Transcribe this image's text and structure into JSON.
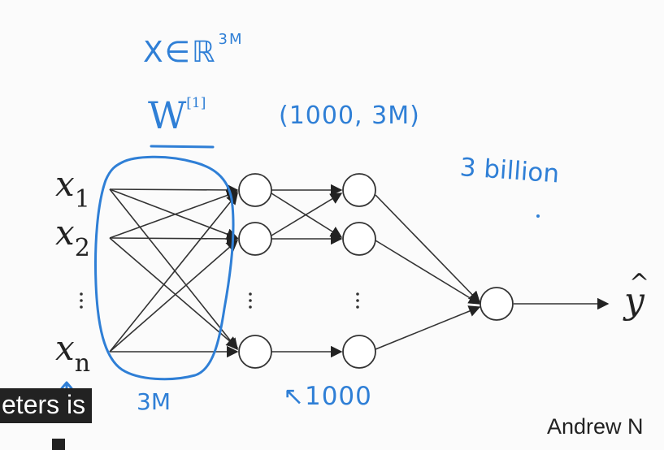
{
  "annotations": {
    "x_in_r_base": "X∈ℝ",
    "x_in_r_exp": "3M",
    "w_base": "W",
    "w_exp": "[1]",
    "dims": "(1000, 3M)",
    "billion": "3 billion",
    "units": "↖1000",
    "bottom_note": "3M"
  },
  "inputs": {
    "x1": {
      "base": "x",
      "sub": "1"
    },
    "x2": {
      "base": "x",
      "sub": "2"
    },
    "xn": {
      "base": "x",
      "sub": "n"
    }
  },
  "output": {
    "base": "y",
    "hat": "^"
  },
  "caption": "eters is",
  "author": "Andrew N",
  "colors": {
    "ink": "#222222",
    "annotation": "#2f7fd6"
  }
}
